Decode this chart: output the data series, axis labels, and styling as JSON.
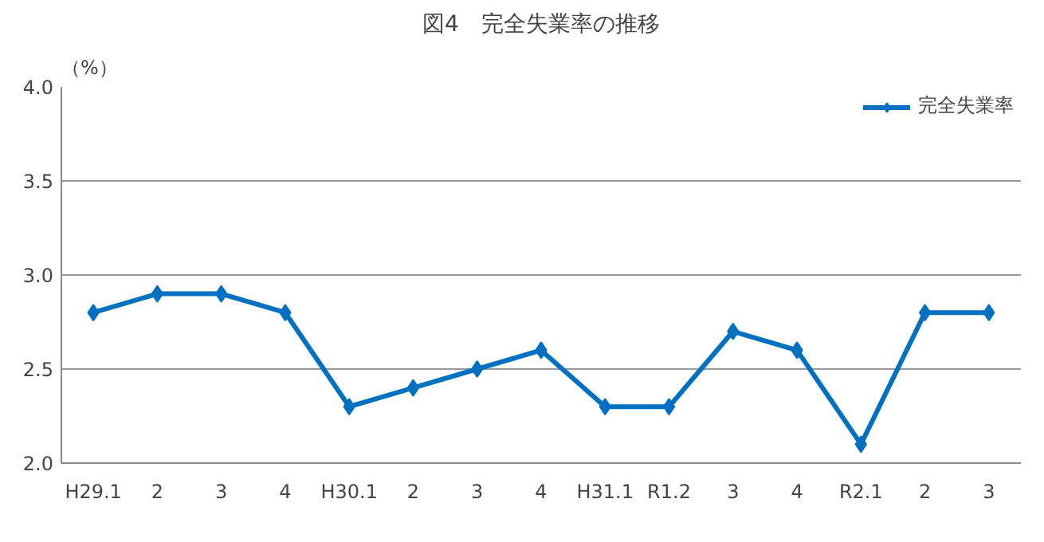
{
  "chart_data": {
    "type": "line",
    "title": "図4　完全失業率の推移",
    "ylabel": "（%）",
    "categories": [
      "H29.1",
      "2",
      "3",
      "4",
      "H30.1",
      "2",
      "3",
      "4",
      "H31.1",
      "R1.2",
      "3",
      "4",
      "R2.1",
      "2",
      "3"
    ],
    "series": [
      {
        "name": "完全失業率",
        "color": "#0070c0",
        "values": [
          2.8,
          2.9,
          2.9,
          2.8,
          2.3,
          2.4,
          2.5,
          2.6,
          2.3,
          2.3,
          2.7,
          2.6,
          2.1,
          2.8,
          2.8
        ]
      }
    ],
    "ylim": [
      2.0,
      4.0
    ],
    "yticks": [
      {
        "value": 2.0,
        "label": "2.0"
      },
      {
        "value": 2.5,
        "label": "2.5"
      },
      {
        "value": 3.0,
        "label": "3.0"
      },
      {
        "value": 3.5,
        "label": "3.5"
      },
      {
        "value": 4.0,
        "label": "4.0"
      }
    ],
    "grid": "y",
    "legend": "top right",
    "marker": "diamond",
    "line_style": "solid"
  }
}
